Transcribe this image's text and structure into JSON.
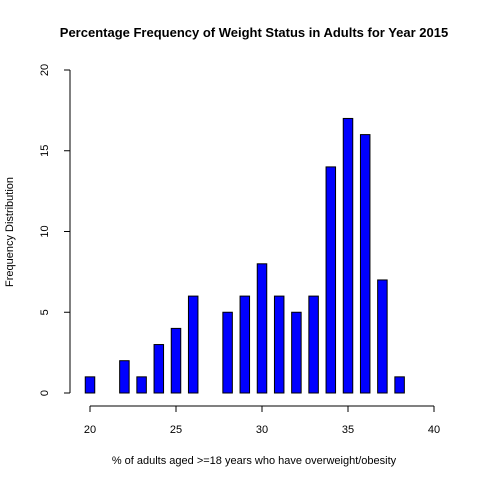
{
  "chart_data": {
    "type": "bar",
    "title": "Percentage Frequency of Weight Status in Adults for Year 2015",
    "xlabel": "% of adults aged >=18 years who have overweight/obesity",
    "ylabel": "Frequency Distribution",
    "xlim": [
      20,
      40
    ],
    "ylim": [
      0,
      20
    ],
    "x_ticks": [
      "20",
      "25",
      "30",
      "35",
      "40"
    ],
    "y_ticks": [
      "0",
      "5",
      "10",
      "15",
      "20"
    ],
    "grid": false,
    "bar_color": "#0000ff",
    "bar_border_color": "#000000",
    "x": [
      20,
      21,
      22,
      23,
      24,
      25,
      26,
      27,
      28,
      29,
      30,
      31,
      32,
      33,
      34,
      35,
      36,
      37,
      38
    ],
    "values": [
      1,
      0,
      2,
      1,
      3,
      4,
      6,
      0,
      5,
      6,
      8,
      6,
      5,
      6,
      14,
      17,
      16,
      7,
      1
    ]
  }
}
